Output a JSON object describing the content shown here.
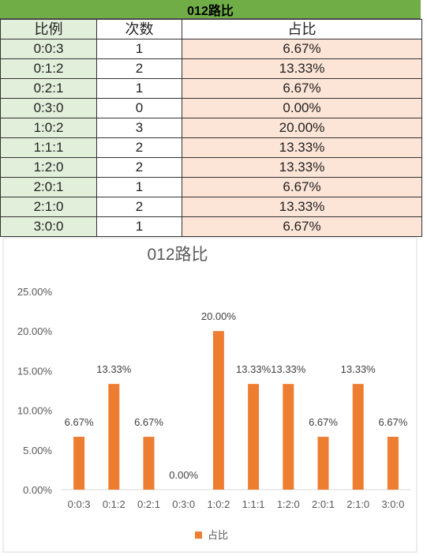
{
  "sheet": {
    "title": "012路比",
    "headers": [
      "比例",
      "次数",
      "占比"
    ],
    "rows": [
      [
        "0:0:3",
        "1",
        "6.67%"
      ],
      [
        "0:1:2",
        "2",
        "13.33%"
      ],
      [
        "0:2:1",
        "1",
        "6.67%"
      ],
      [
        "0:3:0",
        "0",
        "0.00%"
      ],
      [
        "1:0:2",
        "3",
        "20.00%"
      ],
      [
        "1:1:1",
        "2",
        "13.33%"
      ],
      [
        "1:2:0",
        "2",
        "13.33%"
      ],
      [
        "2:0:1",
        "1",
        "6.67%"
      ],
      [
        "2:1:0",
        "2",
        "13.33%"
      ],
      [
        "3:0:0",
        "1",
        "6.67%"
      ]
    ],
    "colors": {
      "title_bg": "#70ad47",
      "ratio_bg": "#e2efda",
      "pct_bg": "#fce4d6"
    }
  },
  "chart_data": {
    "type": "bar",
    "title": "012路比",
    "categories": [
      "0:0:3",
      "0:1:2",
      "0:2:1",
      "0:3:0",
      "1:0:2",
      "1:1:1",
      "1:2:0",
      "2:0:1",
      "2:1:0",
      "3:0:0"
    ],
    "series": [
      {
        "name": "占比",
        "values": [
          6.67,
          13.33,
          6.67,
          0.0,
          20.0,
          13.33,
          13.33,
          6.67,
          13.33,
          6.67
        ],
        "color": "#ed7d31"
      }
    ],
    "data_labels": [
      "6.67%",
      "13.33%",
      "6.67%",
      "0.00%",
      "20.00%",
      "13.33%",
      "13.33%",
      "6.67%",
      "13.33%",
      "6.67%"
    ],
    "yticks": [
      "0.00%",
      "5.00%",
      "10.00%",
      "15.00%",
      "20.00%",
      "25.00%"
    ],
    "ylim": [
      0,
      25
    ],
    "grid": false,
    "legend": "bottom"
  }
}
